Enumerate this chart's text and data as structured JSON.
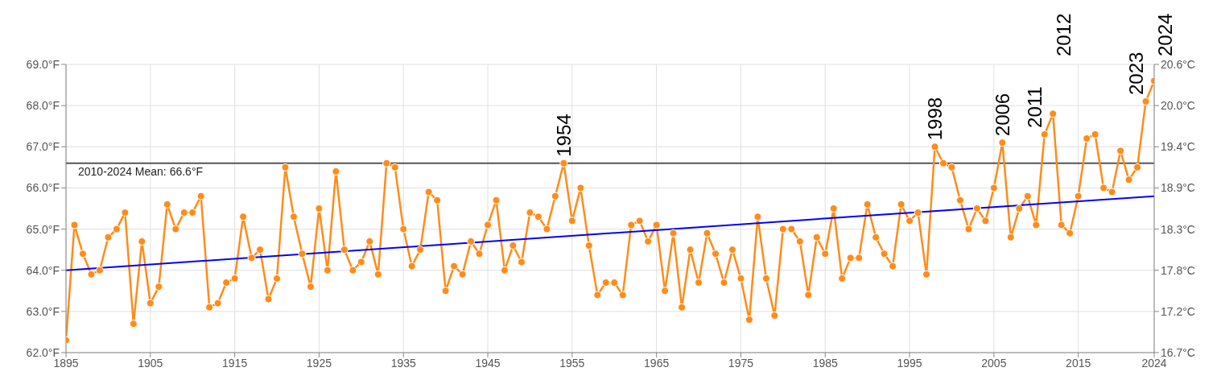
{
  "chart_data": {
    "type": "line",
    "x": [
      1895,
      1896,
      1897,
      1898,
      1899,
      1900,
      1901,
      1902,
      1903,
      1904,
      1905,
      1906,
      1907,
      1908,
      1909,
      1910,
      1911,
      1912,
      1913,
      1914,
      1915,
      1916,
      1917,
      1918,
      1919,
      1920,
      1921,
      1922,
      1923,
      1924,
      1925,
      1926,
      1927,
      1928,
      1929,
      1930,
      1931,
      1932,
      1933,
      1934,
      1935,
      1936,
      1937,
      1938,
      1939,
      1940,
      1941,
      1942,
      1943,
      1944,
      1945,
      1946,
      1947,
      1948,
      1949,
      1950,
      1951,
      1952,
      1953,
      1954,
      1955,
      1956,
      1957,
      1958,
      1959,
      1960,
      1961,
      1962,
      1963,
      1964,
      1965,
      1966,
      1967,
      1968,
      1969,
      1970,
      1971,
      1972,
      1973,
      1974,
      1975,
      1976,
      1977,
      1978,
      1979,
      1980,
      1981,
      1982,
      1983,
      1984,
      1985,
      1986,
      1987,
      1988,
      1989,
      1990,
      1991,
      1992,
      1993,
      1994,
      1995,
      1996,
      1997,
      1998,
      1999,
      2000,
      2001,
      2002,
      2003,
      2004,
      2005,
      2006,
      2007,
      2008,
      2009,
      2010,
      2011,
      2012,
      2013,
      2014,
      2015,
      2016,
      2017,
      2018,
      2019,
      2020,
      2021,
      2022,
      2023,
      2024
    ],
    "series": [
      {
        "color": "#ff8c1a",
        "values": [
          62.3,
          65.1,
          64.4,
          63.9,
          64.0,
          64.8,
          65.0,
          65.4,
          62.7,
          64.7,
          63.2,
          63.6,
          65.6,
          65.0,
          65.4,
          65.4,
          65.8,
          63.1,
          63.2,
          63.7,
          63.8,
          65.3,
          64.3,
          64.5,
          63.3,
          63.8,
          66.5,
          65.3,
          64.4,
          63.6,
          65.5,
          64.0,
          66.4,
          64.5,
          64.0,
          64.2,
          64.7,
          63.9,
          66.6,
          66.5,
          65.0,
          64.1,
          64.5,
          65.9,
          65.7,
          63.5,
          64.1,
          63.9,
          64.7,
          64.4,
          65.1,
          65.7,
          64.0,
          64.6,
          64.2,
          65.4,
          65.3,
          65.0,
          65.8,
          66.6,
          65.2,
          66.0,
          64.6,
          63.4,
          63.7,
          63.7,
          63.4,
          65.1,
          65.2,
          64.7,
          65.1,
          63.5,
          64.9,
          63.1,
          64.5,
          63.7,
          64.9,
          64.4,
          63.7,
          64.5,
          63.8,
          62.8,
          65.3,
          63.8,
          62.9,
          65.0,
          65.0,
          64.7,
          63.4,
          64.8,
          64.4,
          65.5,
          63.8,
          64.3,
          64.3,
          65.6,
          64.8,
          64.4,
          64.1,
          65.6,
          65.2,
          65.4,
          63.9,
          67.0,
          66.6,
          66.5,
          65.7,
          65.0,
          65.5,
          65.2,
          66.0,
          67.1,
          64.8,
          65.5,
          65.8,
          65.1,
          67.3,
          67.8,
          65.1,
          64.9,
          65.8,
          67.2,
          67.3,
          66.0,
          65.9,
          66.9,
          66.2,
          66.5,
          68.1,
          68.6
        ]
      },
      {
        "type": "line",
        "color": "#0000ff",
        "marker": "none",
        "x": [
          1895,
          2024
        ],
        "values": [
          64.0,
          65.8
        ]
      }
    ],
    "xlim": [
      1895,
      2024
    ],
    "xticks": [
      1895,
      1905,
      1915,
      1925,
      1935,
      1945,
      1955,
      1965,
      1975,
      1985,
      1995,
      2005,
      2015,
      2024
    ],
    "ylim": [
      62,
      69
    ],
    "yticks": [
      {
        "value": 62,
        "label": "62.0°F"
      },
      {
        "value": 63,
        "label": "63.0°F"
      },
      {
        "value": 64,
        "label": "64.0°F"
      },
      {
        "value": 65,
        "label": "65.0°F"
      },
      {
        "value": 66,
        "label": "66.0°F"
      },
      {
        "value": 67,
        "label": "67.0°F"
      },
      {
        "value": 68,
        "label": "68.0°F"
      },
      {
        "value": 69,
        "label": "69.0°F"
      }
    ],
    "y2lim": [
      16.667,
      20.556
    ],
    "y2ticks": [
      {
        "value": 16.667,
        "label": "16.7°C"
      },
      {
        "value": 17.222,
        "label": "17.2°C"
      },
      {
        "value": 17.778,
        "label": "17.8°C"
      },
      {
        "value": 18.333,
        "label": "18.3°C"
      },
      {
        "value": 18.889,
        "label": "18.9°C"
      },
      {
        "value": 19.444,
        "label": "19.4°C"
      },
      {
        "value": 20.0,
        "label": "20.0°C"
      },
      {
        "value": 20.556,
        "label": "20.6°C"
      }
    ],
    "ref_lines": [
      {
        "axis": "y",
        "value": 66.6,
        "label": "2010-2024 Mean: 66.6°F",
        "color": "#555555"
      }
    ],
    "annotations": [
      {
        "text": "1954",
        "x": 1954,
        "y": 66.6
      },
      {
        "text": "1998",
        "x": 1998,
        "y": 67.0
      },
      {
        "text": "2006",
        "x": 2006,
        "y": 67.1
      },
      {
        "text": "2011",
        "x": 2011,
        "y": 67.3
      },
      {
        "text": "2012",
        "x": 2012,
        "y": 67.8
      },
      {
        "text": "2023",
        "x": 2023,
        "y": 68.1
      },
      {
        "text": "2024",
        "x": 2024,
        "y": 68.6
      }
    ],
    "grid": true,
    "legend": false,
    "marker": "circle",
    "line_style": "solid"
  }
}
